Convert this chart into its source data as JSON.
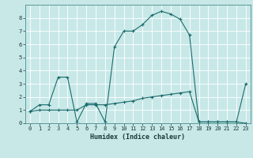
{
  "title": "",
  "xlabel": "Humidex (Indice chaleur)",
  "background_color": "#c8e8e8",
  "grid_color": "#ffffff",
  "line_color": "#1a6b6b",
  "xlim": [
    -0.5,
    23.5
  ],
  "ylim": [
    0,
    9
  ],
  "xticks": [
    0,
    1,
    2,
    3,
    4,
    5,
    6,
    7,
    8,
    9,
    10,
    11,
    12,
    13,
    14,
    15,
    16,
    17,
    18,
    19,
    20,
    21,
    22,
    23
  ],
  "yticks": [
    0,
    1,
    2,
    3,
    4,
    5,
    6,
    7,
    8
  ],
  "line1_x": [
    0,
    1,
    2,
    3,
    4,
    5,
    6,
    7,
    8,
    9,
    10,
    11,
    12,
    13,
    14,
    15,
    16,
    17,
    18,
    19,
    20,
    21,
    22,
    23
  ],
  "line1_y": [
    0.9,
    1.4,
    1.4,
    3.5,
    3.5,
    0.1,
    1.5,
    1.5,
    0.1,
    5.8,
    7.0,
    7.0,
    7.5,
    8.2,
    8.5,
    8.3,
    7.9,
    6.7,
    0.1,
    0.1,
    0.1,
    0.1,
    0.1,
    0.0
  ],
  "line2_x": [
    0,
    1,
    2,
    3,
    4,
    5,
    6,
    7,
    8,
    9,
    10,
    11,
    12,
    13,
    14,
    15,
    16,
    17,
    18,
    19,
    20,
    21,
    22,
    23
  ],
  "line2_y": [
    0.9,
    1.0,
    1.0,
    1.0,
    1.0,
    1.0,
    1.4,
    1.4,
    1.4,
    1.5,
    1.6,
    1.7,
    1.9,
    2.0,
    2.1,
    2.2,
    2.3,
    2.4,
    0.1,
    0.1,
    0.1,
    0.1,
    0.1,
    3.0
  ],
  "xlabel_fontsize": 6,
  "tick_fontsize": 5,
  "linewidth": 0.8,
  "markersize": 3
}
